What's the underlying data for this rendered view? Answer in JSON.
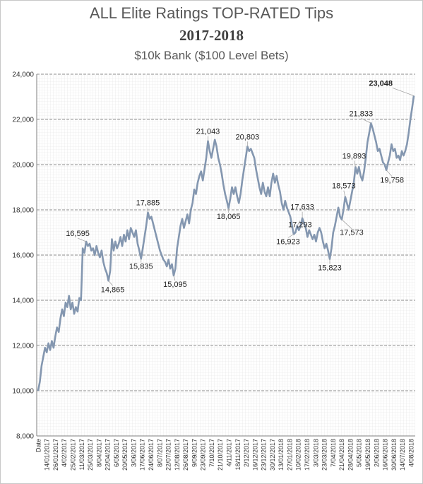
{
  "chart_data": {
    "type": "line",
    "title": "ALL Elite Ratings TOP-RATED Tips",
    "subtitle": "2017-2018",
    "subtitle2": "$10k Bank ($100 Level Bets)",
    "xlabel": "",
    "ylabel": "",
    "ylim": [
      8000,
      24000
    ],
    "y_ticks": [
      "8,000",
      "10,000",
      "12,000",
      "14,000",
      "16,000",
      "18,000",
      "20,000",
      "22,000",
      "24,000"
    ],
    "x_ticks": [
      "Date",
      "14/01/2017",
      "26/01/2017",
      "4/02/2017",
      "25/02/2017",
      "11/03/2017",
      "25/03/2017",
      "8/04/2017",
      "22/04/2017",
      "6/05/2017",
      "20/05/2017",
      "3/06/2017",
      "17/06/2017",
      "24/06/2017",
      "8/07/2017",
      "22/07/2017",
      "12/08/2017",
      "26/08/2017",
      "9/09/2017",
      "23/09/2017",
      "7/10/2017",
      "21/10/2017",
      "4/11/2017",
      "18/11/2017",
      "2/12/2017",
      "16/12/2017",
      "23/12/2017",
      "30/12/2017",
      "13/01/2018",
      "27/01/2018",
      "10/02/2018",
      "17/02/2018",
      "3/03/2018",
      "23/03/2018",
      "7/04/2018",
      "21/04/2018",
      "28/04/2018",
      "5/05/2018",
      "19/05/2018",
      "2/06/2018",
      "16/06/2018",
      "30/06/2018",
      "14/07/2018",
      "4/08/2018"
    ],
    "grid": true,
    "legend": "none",
    "series": [
      {
        "color": "#8497b0",
        "values": [
          10000,
          10400,
          11100,
          11500,
          11900,
          11700,
          12100,
          11800,
          12200,
          11900,
          12400,
          12800,
          12600,
          13200,
          13600,
          13300,
          13900,
          13700,
          14200,
          13600,
          13900,
          13400,
          13700,
          13500,
          14100,
          14000,
          16300,
          16100,
          16595,
          16400,
          16500,
          16200,
          16300,
          16000,
          16400,
          16100,
          15900,
          16200,
          15700,
          15400,
          15200,
          14865,
          15300,
          16700,
          16200,
          16600,
          16300,
          16500,
          16800,
          16400,
          16900,
          16600,
          17100,
          16700,
          17200,
          17000,
          16800,
          17100,
          16500,
          16200,
          15835,
          16300,
          16800,
          17300,
          17885,
          17600,
          17700,
          17400,
          17100,
          16800,
          16500,
          16200,
          16000,
          15800,
          15700,
          15500,
          15800,
          15400,
          15600,
          15095,
          15400,
          16300,
          16800,
          17300,
          17600,
          17200,
          17500,
          17800,
          17400,
          18000,
          18300,
          18900,
          18700,
          19200,
          19500,
          19700,
          19300,
          19800,
          20300,
          21043,
          20600,
          20300,
          20700,
          21100,
          20800,
          20300,
          20000,
          19600,
          19100,
          18700,
          18400,
          18065,
          18500,
          19000,
          18700,
          19000,
          18600,
          18300,
          18700,
          19300,
          19800,
          20300,
          20803,
          20600,
          20700,
          20500,
          20300,
          19800,
          19400,
          19000,
          18700,
          19200,
          18800,
          18600,
          19000,
          18600,
          19200,
          19600,
          19200,
          19500,
          19100,
          18800,
          18300,
          18000,
          18400,
          18100,
          17900,
          17700,
          17300,
          16923,
          17000,
          17293,
          17100,
          17300,
          17633,
          17400,
          17200,
          16800,
          17100,
          16900,
          16700,
          16900,
          16600,
          17000,
          17200,
          17000,
          16600,
          16300,
          16500,
          16200,
          15823,
          16300,
          17000,
          17300,
          17700,
          18100,
          17700,
          17573,
          18000,
          18573,
          18300,
          18000,
          18400,
          18800,
          19200,
          19893,
          19600,
          19900,
          19500,
          19300,
          19700,
          20300,
          21000,
          21400,
          21833,
          21600,
          21300,
          21000,
          20600,
          20700,
          20400,
          20100,
          20000,
          19758,
          20100,
          20400,
          20900,
          20600,
          20700,
          20300,
          20400,
          20200,
          20600,
          20400,
          20600,
          20900,
          21400,
          22000,
          22500,
          23048
        ]
      }
    ],
    "annotations": [
      {
        "label": "16,595",
        "index": 28,
        "dx": -12,
        "dy": -8
      },
      {
        "label": "14,865",
        "index": 41,
        "dx": 6,
        "dy": 16
      },
      {
        "label": "15,835",
        "index": 60,
        "dx": 0,
        "dy": 14
      },
      {
        "label": "17,885",
        "index": 64,
        "dx": 0,
        "dy": -10
      },
      {
        "label": "15,095",
        "index": 79,
        "dx": 2,
        "dy": 16
      },
      {
        "label": "21,043",
        "index": 99,
        "dx": 0,
        "dy": -10
      },
      {
        "label": "18,065",
        "index": 111,
        "dx": 0,
        "dy": 15
      },
      {
        "label": "20,803",
        "index": 122,
        "dx": 0,
        "dy": -10
      },
      {
        "label": "16,923",
        "index": 149,
        "dx": -8,
        "dy": 14
      },
      {
        "label": "17,293",
        "index": 151,
        "dx": 4,
        "dy": 2
      },
      {
        "label": "17,633",
        "index": 154,
        "dx": 0,
        "dy": -12
      },
      {
        "label": "15,823",
        "index": 170,
        "dx": 0,
        "dy": 16
      },
      {
        "label": "17,573",
        "index": 177,
        "dx": 14,
        "dy": 22
      },
      {
        "label": "18,573",
        "index": 179,
        "dx": -2,
        "dy": -12
      },
      {
        "label": "19,893",
        "index": 185,
        "dx": -2,
        "dy": -12
      },
      {
        "label": "21,833",
        "index": 194,
        "dx": -14,
        "dy": -10
      },
      {
        "label": "19,758",
        "index": 203,
        "dx": 8,
        "dy": 18
      },
      {
        "label": "23,048",
        "index": 219,
        "dx": -30,
        "dy": -14,
        "highlight": "#ff0000"
      }
    ]
  }
}
